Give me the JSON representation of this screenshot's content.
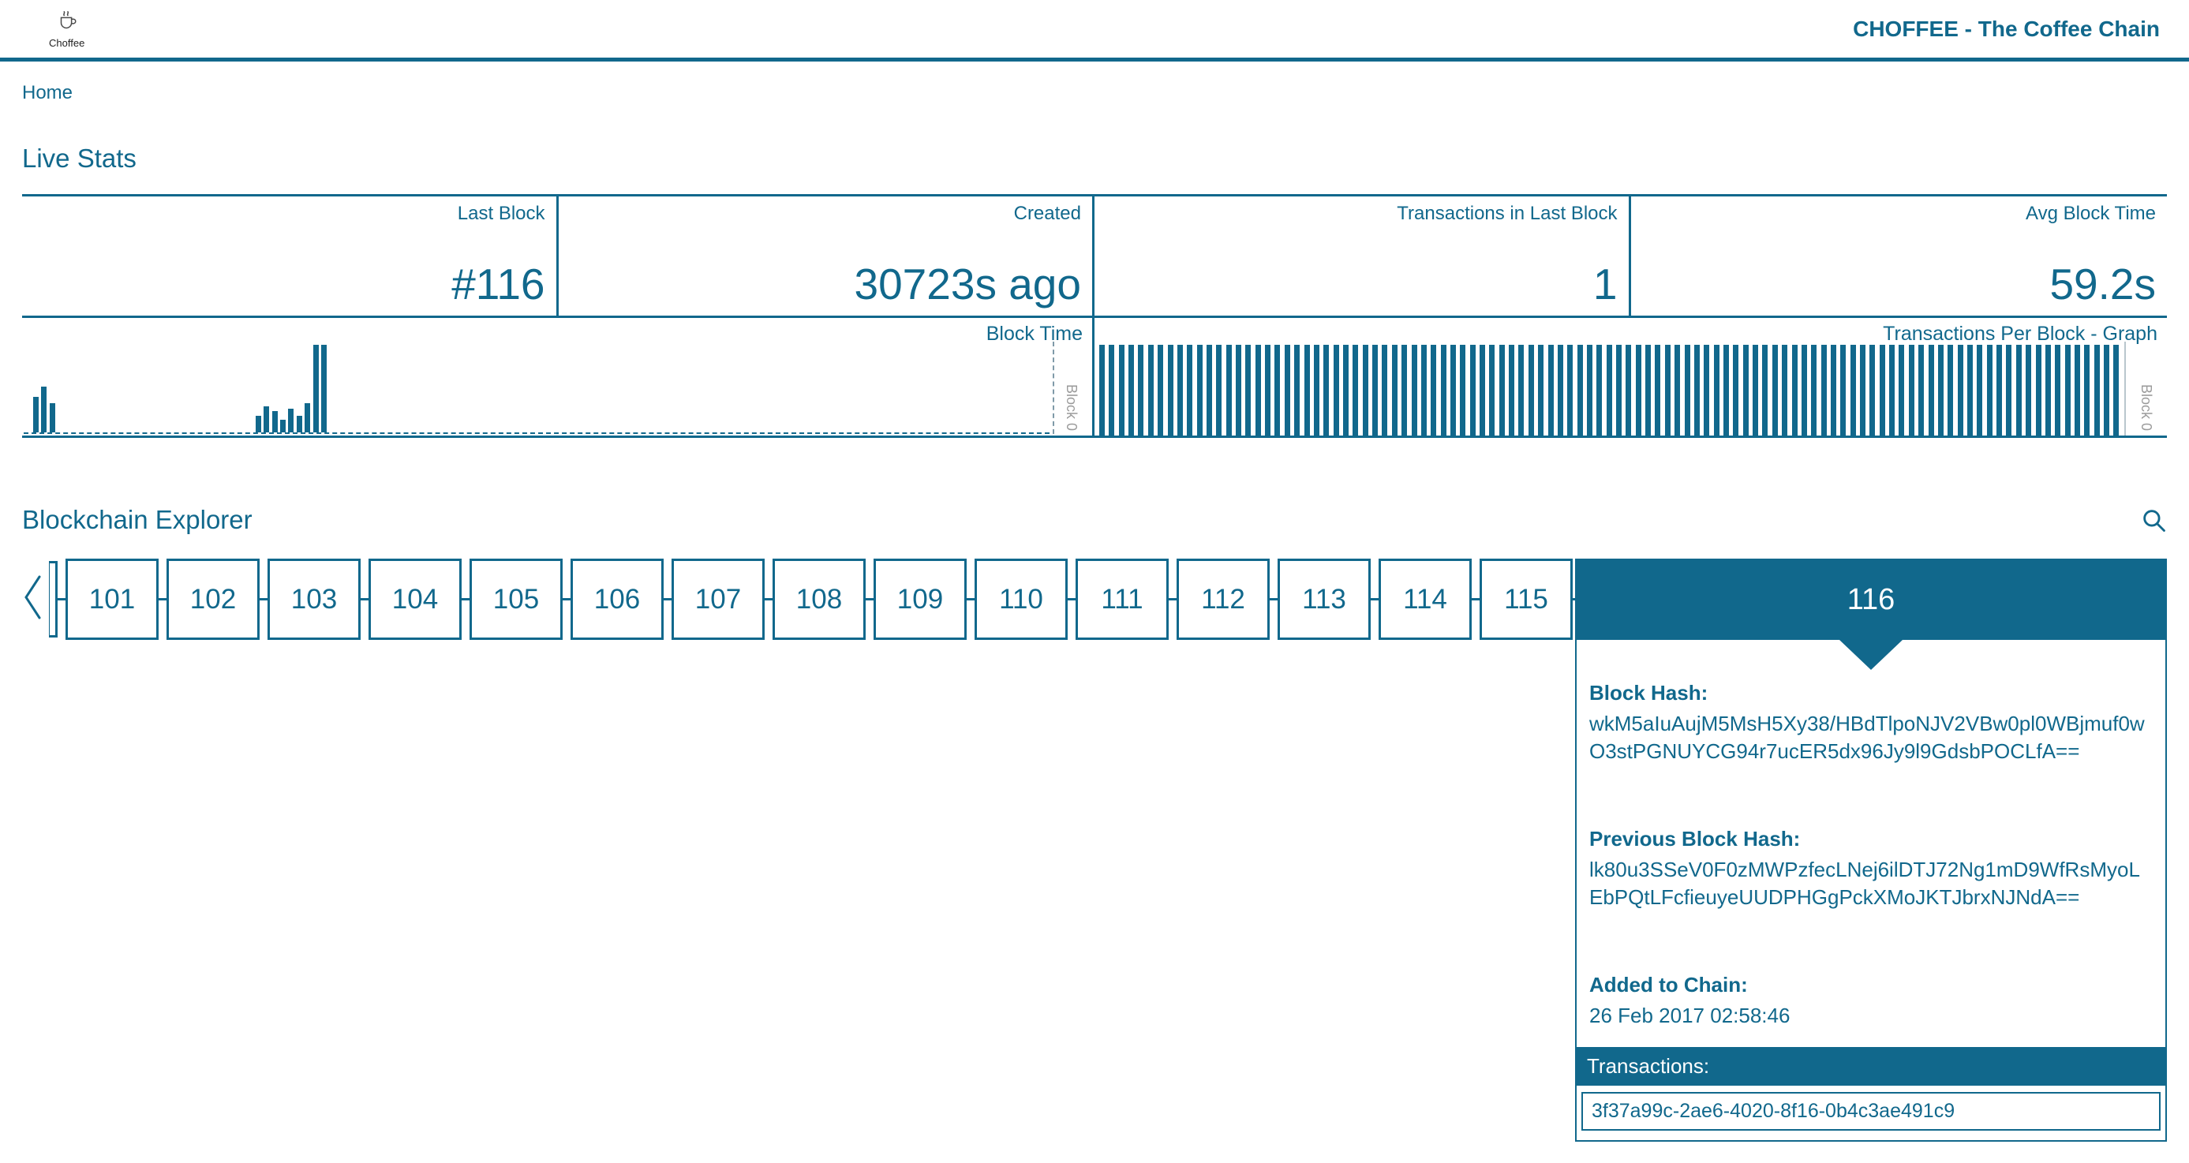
{
  "header": {
    "brand": "CHOFFEE - The Coffee Chain",
    "logo_text": "Choffee"
  },
  "nav": {
    "home": "Home"
  },
  "live_stats": {
    "title": "Live Stats",
    "stats": [
      {
        "label": "Last Block",
        "value": "#116"
      },
      {
        "label": "Created",
        "value": "30723s ago"
      },
      {
        "label": "Transactions in Last Block",
        "value": "1"
      },
      {
        "label": "Avg Block Time",
        "value": "59.2s"
      }
    ]
  },
  "chart_data": [
    {
      "type": "bar",
      "title": "Block Time",
      "right_axis_label": "Block 0",
      "baseline": "dashed",
      "unit": "relative_height_pct",
      "bars": [
        {
          "x_pct": 0.9,
          "h_pct": 41
        },
        {
          "x_pct": 1.7,
          "h_pct": 52
        },
        {
          "x_pct": 2.5,
          "h_pct": 33
        },
        {
          "x_pct": 22.6,
          "h_pct": 19
        },
        {
          "x_pct": 23.4,
          "h_pct": 30
        },
        {
          "x_pct": 24.2,
          "h_pct": 24
        },
        {
          "x_pct": 25.0,
          "h_pct": 14
        },
        {
          "x_pct": 25.8,
          "h_pct": 27
        },
        {
          "x_pct": 26.6,
          "h_pct": 19
        },
        {
          "x_pct": 27.4,
          "h_pct": 33
        },
        {
          "x_pct": 28.2,
          "h_pct": 100
        },
        {
          "x_pct": 29.0,
          "h_pct": 100
        }
      ]
    },
    {
      "type": "bar",
      "title": "Transactions Per Block - Graph",
      "right_axis_label": "Block 0",
      "bar_count": 105,
      "uniform_value": 1,
      "ylim": [
        0,
        1
      ]
    }
  ],
  "explorer": {
    "title": "Blockchain Explorer",
    "blocks": [
      "101",
      "102",
      "103",
      "104",
      "105",
      "106",
      "107",
      "108",
      "109",
      "110",
      "111",
      "112",
      "113",
      "114",
      "115"
    ],
    "selected_block": {
      "number": "116",
      "block_hash_label": "Block Hash:",
      "block_hash": "wkM5aIuAujM5MsH5Xy38/HBdTlpoNJV2VBw0pl0WBjmuf0wO3stPGNUYCG94r7ucER5dx96Jy9l9GdsbPOCLfA==",
      "prev_hash_label": "Previous Block Hash:",
      "prev_hash": "lk80u3SSeV0F0zMWPzfecLNej6ilDTJ72Ng1mD9WfRsMyoLEbPQtLFcfieuyeUUDPHGgPckXMoJKTJbrxNJNdA==",
      "added_label": "Added to Chain:",
      "added": "26 Feb 2017 02:58:46",
      "transactions_label": "Transactions:",
      "transactions": [
        "3f37a99c-2ae6-4020-8f16-0b4c3ae491c9"
      ]
    }
  },
  "colors": {
    "accent": "#11688c",
    "muted_gray": "#9b9b9b"
  }
}
